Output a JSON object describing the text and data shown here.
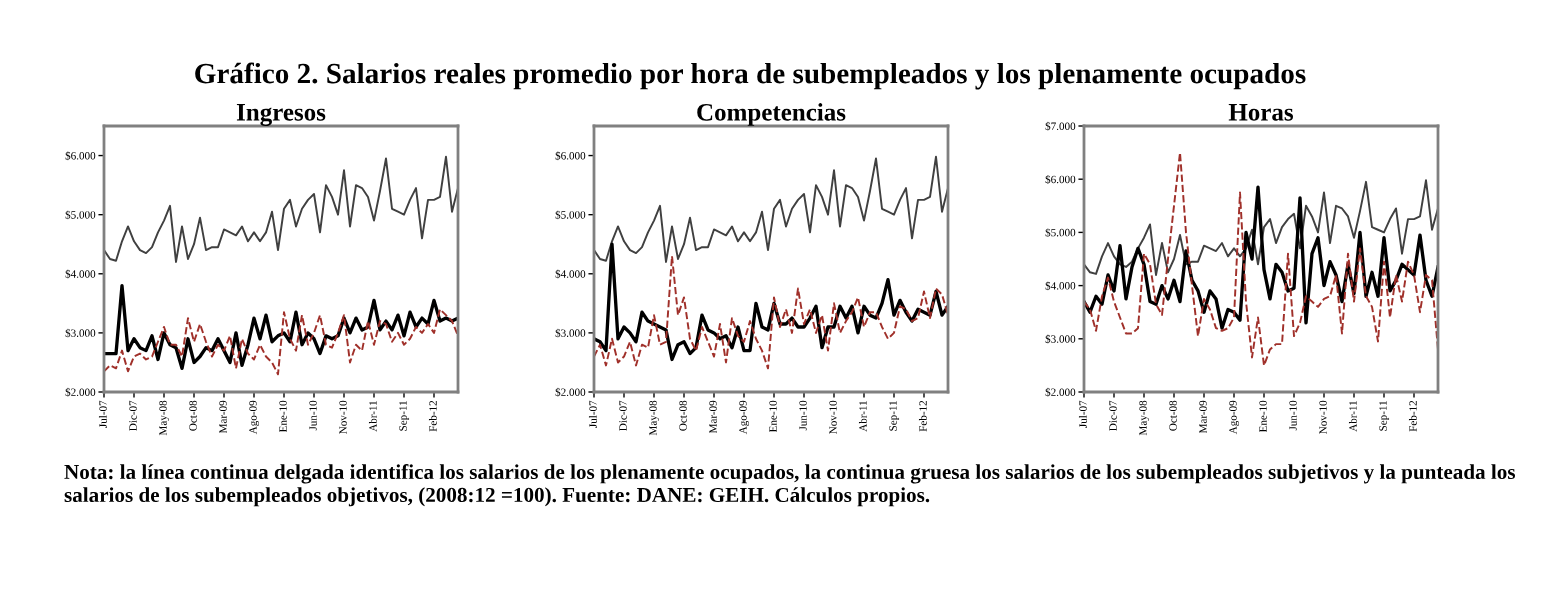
{
  "chart_data": [
    {
      "type": "line",
      "title": "Ingresos",
      "annotations": [
        "Gráfico 2. Salarios reales promedio por hora de subempleados y los plenamente ocupados",
        "Nota: la línea continua delgada identifica los salarios de los plenamente ocupados, la continua gruesa los salarios de los subempleados subjetivos y la punteada los salarios de los subempleados objetivos, (2008:12 =100). Fuente: DANE: GEIH. Cálculos propios."
      ],
      "categories": [
        "Jul-07",
        null,
        null,
        null,
        null,
        "Dic-07",
        null,
        null,
        null,
        null,
        "May-08",
        null,
        null,
        null,
        null,
        "Oct-08",
        null,
        null,
        null,
        null,
        "Mar-09",
        null,
        null,
        null,
        null,
        "Ago-09",
        null,
        null,
        null,
        null,
        "Ene-10",
        null,
        null,
        null,
        null,
        "Jun-10",
        null,
        null,
        null,
        null,
        "Nov-10",
        null,
        null,
        null,
        null,
        "Abr-11",
        null,
        null,
        null,
        null,
        "Sep-11",
        null,
        null,
        null,
        null,
        "Feb-12",
        null,
        null,
        null,
        null
      ],
      "ylim": [
        2000,
        6500
      ],
      "yticks": [
        {
          "value": 2000,
          "label": "$2.000"
        },
        {
          "value": 3000,
          "label": "$3.000"
        },
        {
          "value": 4000,
          "label": "$4.000"
        },
        {
          "value": 5000,
          "label": "$5.000"
        },
        {
          "value": 6000,
          "label": "$6.000"
        }
      ],
      "grid": false,
      "legend": false,
      "series": [
        {
          "color": "#404040",
          "line_style": "solid",
          "values": [
            4400,
            4250,
            4220,
            4550,
            4800,
            4550,
            4400,
            4350,
            4450,
            4700,
            4900,
            5150,
            4200,
            4800,
            4250,
            4500,
            4950,
            4400,
            4450,
            4450,
            4750,
            4700,
            4650,
            4800,
            4550,
            4700,
            4550,
            4700,
            5050,
            4400,
            5100,
            5250,
            4800,
            5100,
            5250,
            5350,
            4700,
            5500,
            5300,
            5000,
            5750,
            4800,
            5500,
            5450,
            5300,
            4900,
            5400,
            5950,
            5100,
            5050,
            5000,
            5250,
            5450,
            4600,
            5250,
            5250,
            5300,
            5980,
            5050,
            5450
          ]
        },
        {
          "color": "#000000",
          "line_style": "solid",
          "values": [
            2650,
            2650,
            2650,
            3800,
            2700,
            2900,
            2750,
            2700,
            2950,
            2550,
            3000,
            2800,
            2750,
            2400,
            2900,
            2500,
            2600,
            2750,
            2700,
            2900,
            2700,
            2500,
            3000,
            2450,
            2800,
            3250,
            2900,
            3300,
            2850,
            2950,
            3000,
            2850,
            3350,
            2800,
            3000,
            2900,
            2650,
            2950,
            2900,
            2950,
            3250,
            3000,
            3250,
            3050,
            3100,
            3550,
            3050,
            3200,
            3050,
            3300,
            2950,
            3350,
            3100,
            3250,
            3150,
            3550,
            3200,
            3250,
            3200,
            3250
          ]
        },
        {
          "color": "#a0302a",
          "line_style": "dashed",
          "values": [
            2350,
            2450,
            2400,
            2700,
            2350,
            2600,
            2650,
            2550,
            2600,
            2850,
            3100,
            2800,
            2800,
            2600,
            3250,
            2850,
            3150,
            2850,
            2600,
            2800,
            2700,
            2950,
            2400,
            2900,
            2650,
            2550,
            2800,
            2600,
            2500,
            2300,
            3350,
            2900,
            2700,
            3300,
            2800,
            3000,
            3300,
            2800,
            2750,
            3000,
            3300,
            2500,
            2800,
            2700,
            3200,
            2800,
            3200,
            3150,
            2850,
            3000,
            2800,
            2900,
            3100,
            3000,
            3150,
            3000,
            3400,
            3300,
            3200,
            2950
          ]
        }
      ]
    },
    {
      "type": "line",
      "title": "Competencias",
      "categories": [
        "Jul-07",
        null,
        null,
        null,
        null,
        "Dic-07",
        null,
        null,
        null,
        null,
        "May-08",
        null,
        null,
        null,
        null,
        "Oct-08",
        null,
        null,
        null,
        null,
        "Mar-09",
        null,
        null,
        null,
        null,
        "Ago-09",
        null,
        null,
        null,
        null,
        "Ene-10",
        null,
        null,
        null,
        null,
        "Jun-10",
        null,
        null,
        null,
        null,
        "Nov-10",
        null,
        null,
        null,
        null,
        "Abr-11",
        null,
        null,
        null,
        null,
        "Sep-11",
        null,
        null,
        null,
        null,
        "Feb-12",
        null,
        null,
        null,
        null
      ],
      "ylim": [
        2000,
        6500
      ],
      "yticks": [
        {
          "value": 2000,
          "label": "$2.000"
        },
        {
          "value": 3000,
          "label": "$3.000"
        },
        {
          "value": 4000,
          "label": "$4.000"
        },
        {
          "value": 5000,
          "label": "$5.000"
        },
        {
          "value": 6000,
          "label": "$6.000"
        }
      ],
      "grid": false,
      "legend": false,
      "series": [
        {
          "color": "#404040",
          "line_style": "solid",
          "values": [
            4400,
            4250,
            4220,
            4550,
            4800,
            4550,
            4400,
            4350,
            4450,
            4700,
            4900,
            5150,
            4200,
            4800,
            4250,
            4500,
            4950,
            4400,
            4450,
            4450,
            4750,
            4700,
            4650,
            4800,
            4550,
            4700,
            4550,
            4700,
            5050,
            4400,
            5100,
            5250,
            4800,
            5100,
            5250,
            5350,
            4700,
            5500,
            5300,
            5000,
            5750,
            4800,
            5500,
            5450,
            5300,
            4900,
            5400,
            5950,
            5100,
            5050,
            5000,
            5250,
            5450,
            4600,
            5250,
            5250,
            5300,
            5980,
            5050,
            5450
          ]
        },
        {
          "color": "#000000",
          "line_style": "solid",
          "values": [
            2900,
            2850,
            2700,
            4500,
            2900,
            3100,
            3000,
            2850,
            3350,
            3200,
            3150,
            3100,
            3050,
            2550,
            2800,
            2850,
            2650,
            2750,
            3300,
            3050,
            3000,
            2900,
            2950,
            2750,
            3100,
            2700,
            2700,
            3500,
            3100,
            3050,
            3500,
            3150,
            3150,
            3250,
            3100,
            3100,
            3250,
            3450,
            2750,
            3100,
            3100,
            3450,
            3250,
            3450,
            3000,
            3450,
            3300,
            3250,
            3500,
            3900,
            3300,
            3550,
            3350,
            3200,
            3400,
            3350,
            3300,
            3700,
            3300,
            3450
          ]
        },
        {
          "color": "#a0302a",
          "line_style": "dashed",
          "values": [
            2600,
            2800,
            2450,
            2900,
            2500,
            2600,
            2850,
            2450,
            2800,
            2750,
            3300,
            2800,
            2850,
            4300,
            3300,
            3600,
            2900,
            2700,
            3100,
            2850,
            2600,
            3150,
            2500,
            3250,
            2950,
            2850,
            3200,
            2900,
            2700,
            2400,
            3600,
            3100,
            3400,
            3000,
            3750,
            3150,
            3400,
            3000,
            3300,
            2700,
            3500,
            3000,
            3200,
            3350,
            3600,
            3100,
            3350,
            3350,
            3100,
            2900,
            3000,
            3450,
            3400,
            3200,
            3250,
            3700,
            3250,
            3750,
            3650,
            3300
          ]
        }
      ]
    },
    {
      "type": "line",
      "title": "Horas",
      "categories": [
        "Jul-07",
        null,
        null,
        null,
        null,
        "Dic-07",
        null,
        null,
        null,
        null,
        "May-08",
        null,
        null,
        null,
        null,
        "Oct-08",
        null,
        null,
        null,
        null,
        "Mar-09",
        null,
        null,
        null,
        null,
        "Ago-09",
        null,
        null,
        null,
        null,
        "Ene-10",
        null,
        null,
        null,
        null,
        "Jun-10",
        null,
        null,
        null,
        null,
        "Nov-10",
        null,
        null,
        null,
        null,
        "Abr-11",
        null,
        null,
        null,
        null,
        "Sep-11",
        null,
        null,
        null,
        null,
        "Feb-12",
        null,
        null,
        null,
        null
      ],
      "ylim": [
        2000,
        7000
      ],
      "yticks": [
        {
          "value": 2000,
          "label": "$2.000"
        },
        {
          "value": 3000,
          "label": "$3.000"
        },
        {
          "value": 4000,
          "label": "$4.000"
        },
        {
          "value": 5000,
          "label": "$5.000"
        },
        {
          "value": 6000,
          "label": "$6.000"
        },
        {
          "value": 7000,
          "label": "$7.000"
        }
      ],
      "grid": false,
      "legend": false,
      "series": [
        {
          "color": "#404040",
          "line_style": "solid",
          "values": [
            4400,
            4250,
            4220,
            4550,
            4800,
            4550,
            4400,
            4350,
            4450,
            4700,
            4900,
            5150,
            4200,
            4800,
            4250,
            4500,
            4950,
            4400,
            4450,
            4450,
            4750,
            4700,
            4650,
            4800,
            4550,
            4700,
            4550,
            4700,
            5050,
            4400,
            5100,
            5250,
            4800,
            5100,
            5250,
            5350,
            4700,
            5500,
            5300,
            5000,
            5750,
            4800,
            5500,
            5450,
            5300,
            4900,
            5400,
            5950,
            5100,
            5050,
            5000,
            5250,
            5450,
            4600,
            5250,
            5250,
            5300,
            5980,
            5050,
            5450
          ]
        },
        {
          "color": "#000000",
          "line_style": "solid",
          "values": [
            3700,
            3500,
            3800,
            3650,
            4200,
            3900,
            4750,
            3750,
            4350,
            4700,
            4400,
            3700,
            3650,
            4000,
            3750,
            4100,
            3700,
            4650,
            4100,
            3900,
            3500,
            3900,
            3750,
            3200,
            3550,
            3500,
            3350,
            5000,
            4500,
            5850,
            4300,
            3750,
            4400,
            4250,
            3900,
            3950,
            5650,
            3300,
            4600,
            4900,
            4000,
            4450,
            4200,
            3700,
            4400,
            3850,
            5000,
            3800,
            4250,
            3800,
            4900,
            3900,
            4100,
            4400,
            4300,
            4200,
            4950,
            4100,
            3800,
            4350
          ]
        },
        {
          "color": "#a0302a",
          "line_style": "dashed",
          "values": [
            3700,
            3550,
            3150,
            3800,
            4150,
            3700,
            3400,
            3100,
            3100,
            3200,
            4600,
            4400,
            3650,
            3450,
            4500,
            5500,
            6500,
            5000,
            4000,
            3050,
            3750,
            3550,
            3200,
            3150,
            3200,
            3400,
            5750,
            3700,
            2650,
            3400,
            2500,
            2800,
            2900,
            2900,
            4600,
            3050,
            3300,
            3800,
            3700,
            3600,
            3750,
            3800,
            4200,
            3100,
            4600,
            3700,
            4700,
            3800,
            3600,
            2950,
            4450,
            3400,
            4200,
            3700,
            4450,
            4200,
            3500,
            4200,
            4100,
            2800
          ]
        }
      ]
    }
  ]
}
